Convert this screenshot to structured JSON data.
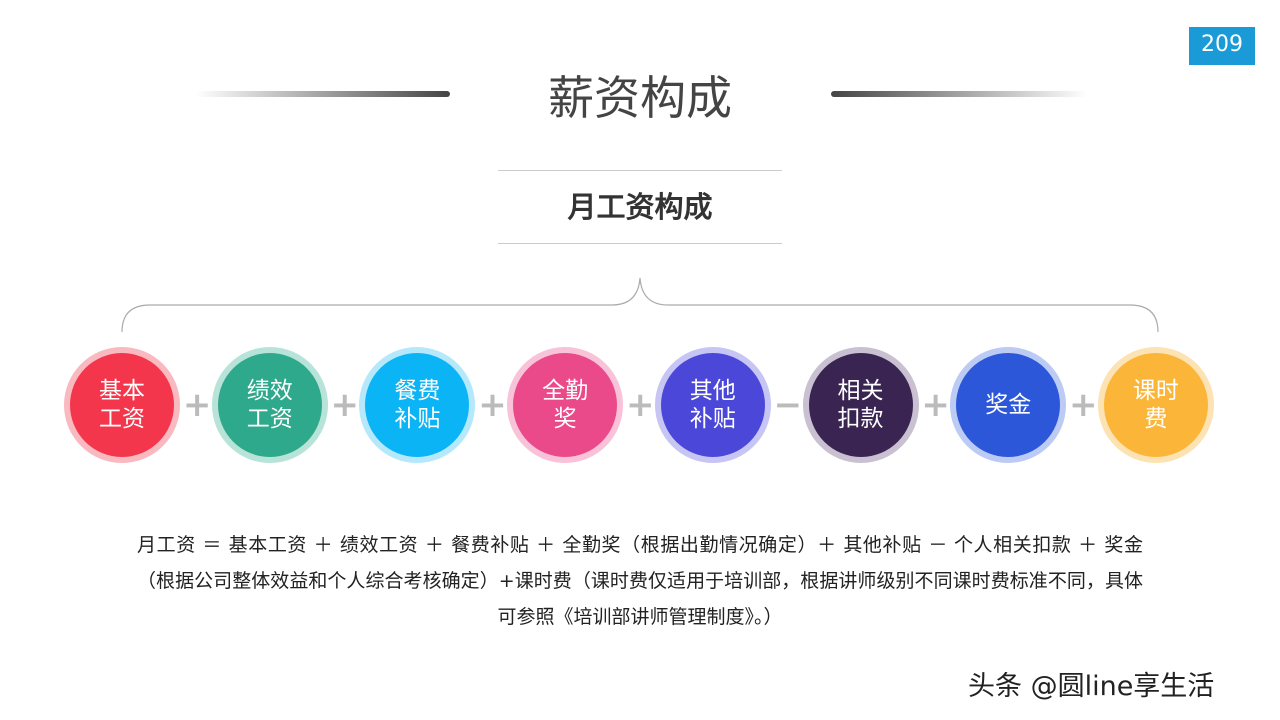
{
  "page_number": "209",
  "title": "薪资构成",
  "subtitle": "月工资构成",
  "components": [
    {
      "label": "基本\n工资",
      "color": "#f4364c",
      "ring": "#f9b9c0"
    },
    {
      "label": "绩效\n工资",
      "color": "#2fa98c",
      "ring": "#b8e3d8"
    },
    {
      "label": "餐费\n补贴",
      "color": "#0ab4f5",
      "ring": "#b6e8fc"
    },
    {
      "label": "全勤\n奖",
      "color": "#ea4a8a",
      "ring": "#f8c2d8"
    },
    {
      "label": "其他\n补贴",
      "color": "#4b47d8",
      "ring": "#c6c5f3"
    },
    {
      "label": "相关\n扣款",
      "color": "#3a2452",
      "ring": "#c9c1d1"
    },
    {
      "label": "奖金",
      "color": "#2b57d8",
      "ring": "#bccbf3"
    },
    {
      "label": "课时\n费",
      "color": "#fbb63a",
      "ring": "#fde3b3"
    }
  ],
  "operators": [
    "+",
    "+",
    "+",
    "+",
    "−",
    "+",
    "+"
  ],
  "formula_text": "月工资 ＝ 基本工资 ＋ 绩效工资 ＋ 餐费补贴 ＋ 全勤奖（根据出勤情况确定）＋ 其他补贴 － 个人相关扣款 ＋ 奖金（根据公司整体效益和个人综合考核确定）+课时费（课时费仅适用于培训部，根据讲师级别不同课时费标准不同，具体可参照《培训部讲师管理制度》。）",
  "watermark": "头条 @圆line享生活"
}
